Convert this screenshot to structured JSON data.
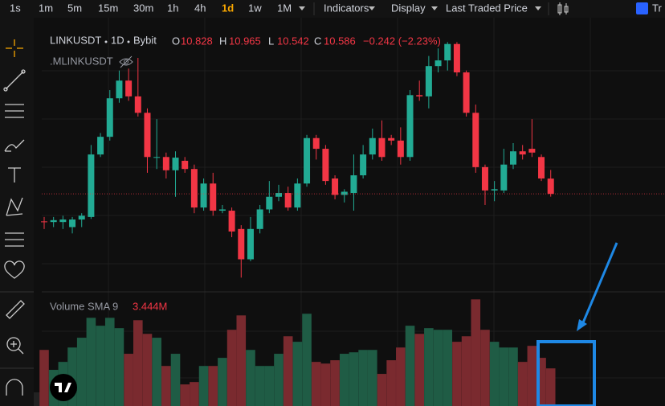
{
  "toolbar": {
    "intervals": [
      "1s",
      "1m",
      "5m",
      "15m",
      "30m",
      "1h",
      "4h",
      "1d",
      "1w",
      "1M"
    ],
    "active": 7,
    "menus": [
      "Indicators",
      "Display",
      "Last Traded Price"
    ],
    "cut_label": "Tr"
  },
  "chart_data": {
    "type": "candlestick",
    "symbol": "LINKUSDT",
    "interval": "1D",
    "exchange": "Bybit",
    "ohlc_labels": [
      "O",
      "H",
      "L",
      "C"
    ],
    "change": "−0.242 (−2.23%)",
    "secondary_symbol": ".MLINKUSDT",
    "up_color": "#22ab94",
    "down_color": "#f23645",
    "ylim": [
      9.2,
      13.02
    ],
    "candles": [
      [
        10.15,
        10.22,
        10.03,
        10.14
      ],
      [
        10.14,
        10.22,
        10.06,
        10.17
      ],
      [
        10.14,
        10.24,
        10.03,
        10.18
      ],
      [
        10.06,
        10.22,
        9.96,
        10.18
      ],
      [
        10.18,
        10.28,
        10.06,
        10.24
      ],
      [
        10.22,
        11.36,
        10.19,
        11.21
      ],
      [
        11.21,
        11.55,
        11.17,
        11.49
      ],
      [
        11.49,
        12.23,
        11.43,
        12.1
      ],
      [
        12.1,
        12.54,
        12.03,
        12.38
      ],
      [
        12.38,
        12.57,
        12.06,
        12.13
      ],
      [
        12.13,
        12.74,
        11.81,
        11.87
      ],
      [
        11.87,
        11.94,
        10.92,
        11.17
      ],
      [
        11.17,
        11.77,
        10.98,
        11.17
      ],
      [
        11.17,
        11.24,
        10.83,
        10.96
      ],
      [
        10.96,
        11.26,
        10.54,
        11.16
      ],
      [
        11.11,
        11.17,
        10.92,
        10.98
      ],
      [
        10.98,
        11.05,
        10.28,
        10.37
      ],
      [
        10.37,
        10.83,
        10.32,
        10.75
      ],
      [
        10.75,
        10.92,
        10.24,
        10.32
      ],
      [
        10.32,
        10.41,
        10.28,
        10.34
      ],
      [
        10.32,
        10.37,
        9.9,
        9.99
      ],
      [
        10.03,
        10.09,
        9.26,
        9.55
      ],
      [
        9.55,
        10.22,
        9.52,
        10.03
      ],
      [
        10.03,
        10.41,
        9.96,
        10.34
      ],
      [
        10.34,
        10.79,
        10.28,
        10.54
      ],
      [
        10.54,
        10.73,
        10.47,
        10.6
      ],
      [
        10.6,
        10.7,
        10.32,
        10.37
      ],
      [
        10.37,
        10.83,
        10.32,
        10.75
      ],
      [
        10.75,
        11.52,
        10.7,
        11.47
      ],
      [
        11.47,
        11.52,
        11.13,
        11.3
      ],
      [
        11.3,
        11.36,
        10.73,
        10.79
      ],
      [
        10.83,
        10.88,
        10.5,
        10.57
      ],
      [
        10.57,
        10.66,
        10.45,
        10.62
      ],
      [
        10.6,
        11.21,
        10.32,
        10.88
      ],
      [
        10.88,
        11.36,
        10.83,
        11.21
      ],
      [
        11.21,
        11.62,
        11.13,
        11.47
      ],
      [
        11.47,
        11.75,
        11.11,
        11.17
      ],
      [
        11.47,
        11.52,
        11.36,
        11.43
      ],
      [
        11.43,
        11.64,
        11.05,
        11.17
      ],
      [
        11.17,
        12.23,
        11.11,
        12.15
      ],
      [
        12.15,
        12.38,
        12.06,
        12.13
      ],
      [
        12.13,
        12.77,
        11.94,
        12.61
      ],
      [
        12.61,
        12.89,
        12.51,
        12.7
      ],
      [
        12.7,
        12.99,
        12.54,
        12.96
      ],
      [
        12.96,
        12.99,
        12.45,
        12.51
      ],
      [
        12.51,
        12.54,
        11.81,
        11.87
      ],
      [
        11.87,
        12.0,
        10.92,
        11.01
      ],
      [
        11.01,
        11.05,
        10.41,
        10.64
      ],
      [
        10.64,
        10.79,
        10.47,
        10.66
      ],
      [
        10.64,
        11.3,
        10.6,
        11.05
      ],
      [
        11.05,
        11.39,
        10.98,
        11.26
      ],
      [
        11.26,
        11.36,
        11.13,
        11.21
      ],
      [
        11.3,
        11.77,
        11.17,
        11.24
      ],
      [
        11.17,
        11.21,
        10.79,
        10.83
      ],
      [
        10.828,
        10.965,
        10.542,
        10.586
      ]
    ],
    "volume": {
      "title": "Volume SMA 9",
      "sma": "3.444M",
      "up_color": "#1f5c45",
      "down_color": "#7a2a2f",
      "ylim": [
        0,
        6.1
      ],
      "values": [
        3.04,
        1.96,
        2.39,
        3.17,
        3.7,
        4.78,
        4.35,
        4.78,
        4.22,
        2.83,
        4.65,
        3.91,
        3.7,
        2.17,
        2.83,
        1.17,
        1.3,
        2.17,
        2.17,
        2.61,
        4.13,
        4.91,
        3.04,
        2.17,
        2.17,
        2.83,
        3.78,
        3.48,
        5.0,
        2.39,
        2.3,
        2.48,
        2.83,
        2.91,
        3.04,
        3.04,
        1.74,
        2.48,
        3.17,
        4.35,
        3.91,
        4.22,
        4.13,
        4.13,
        3.48,
        3.78,
        5.78,
        4.13,
        3.48,
        3.17,
        3.17,
        2.39,
        3.26,
        2.61,
        2.04
      ]
    }
  }
}
